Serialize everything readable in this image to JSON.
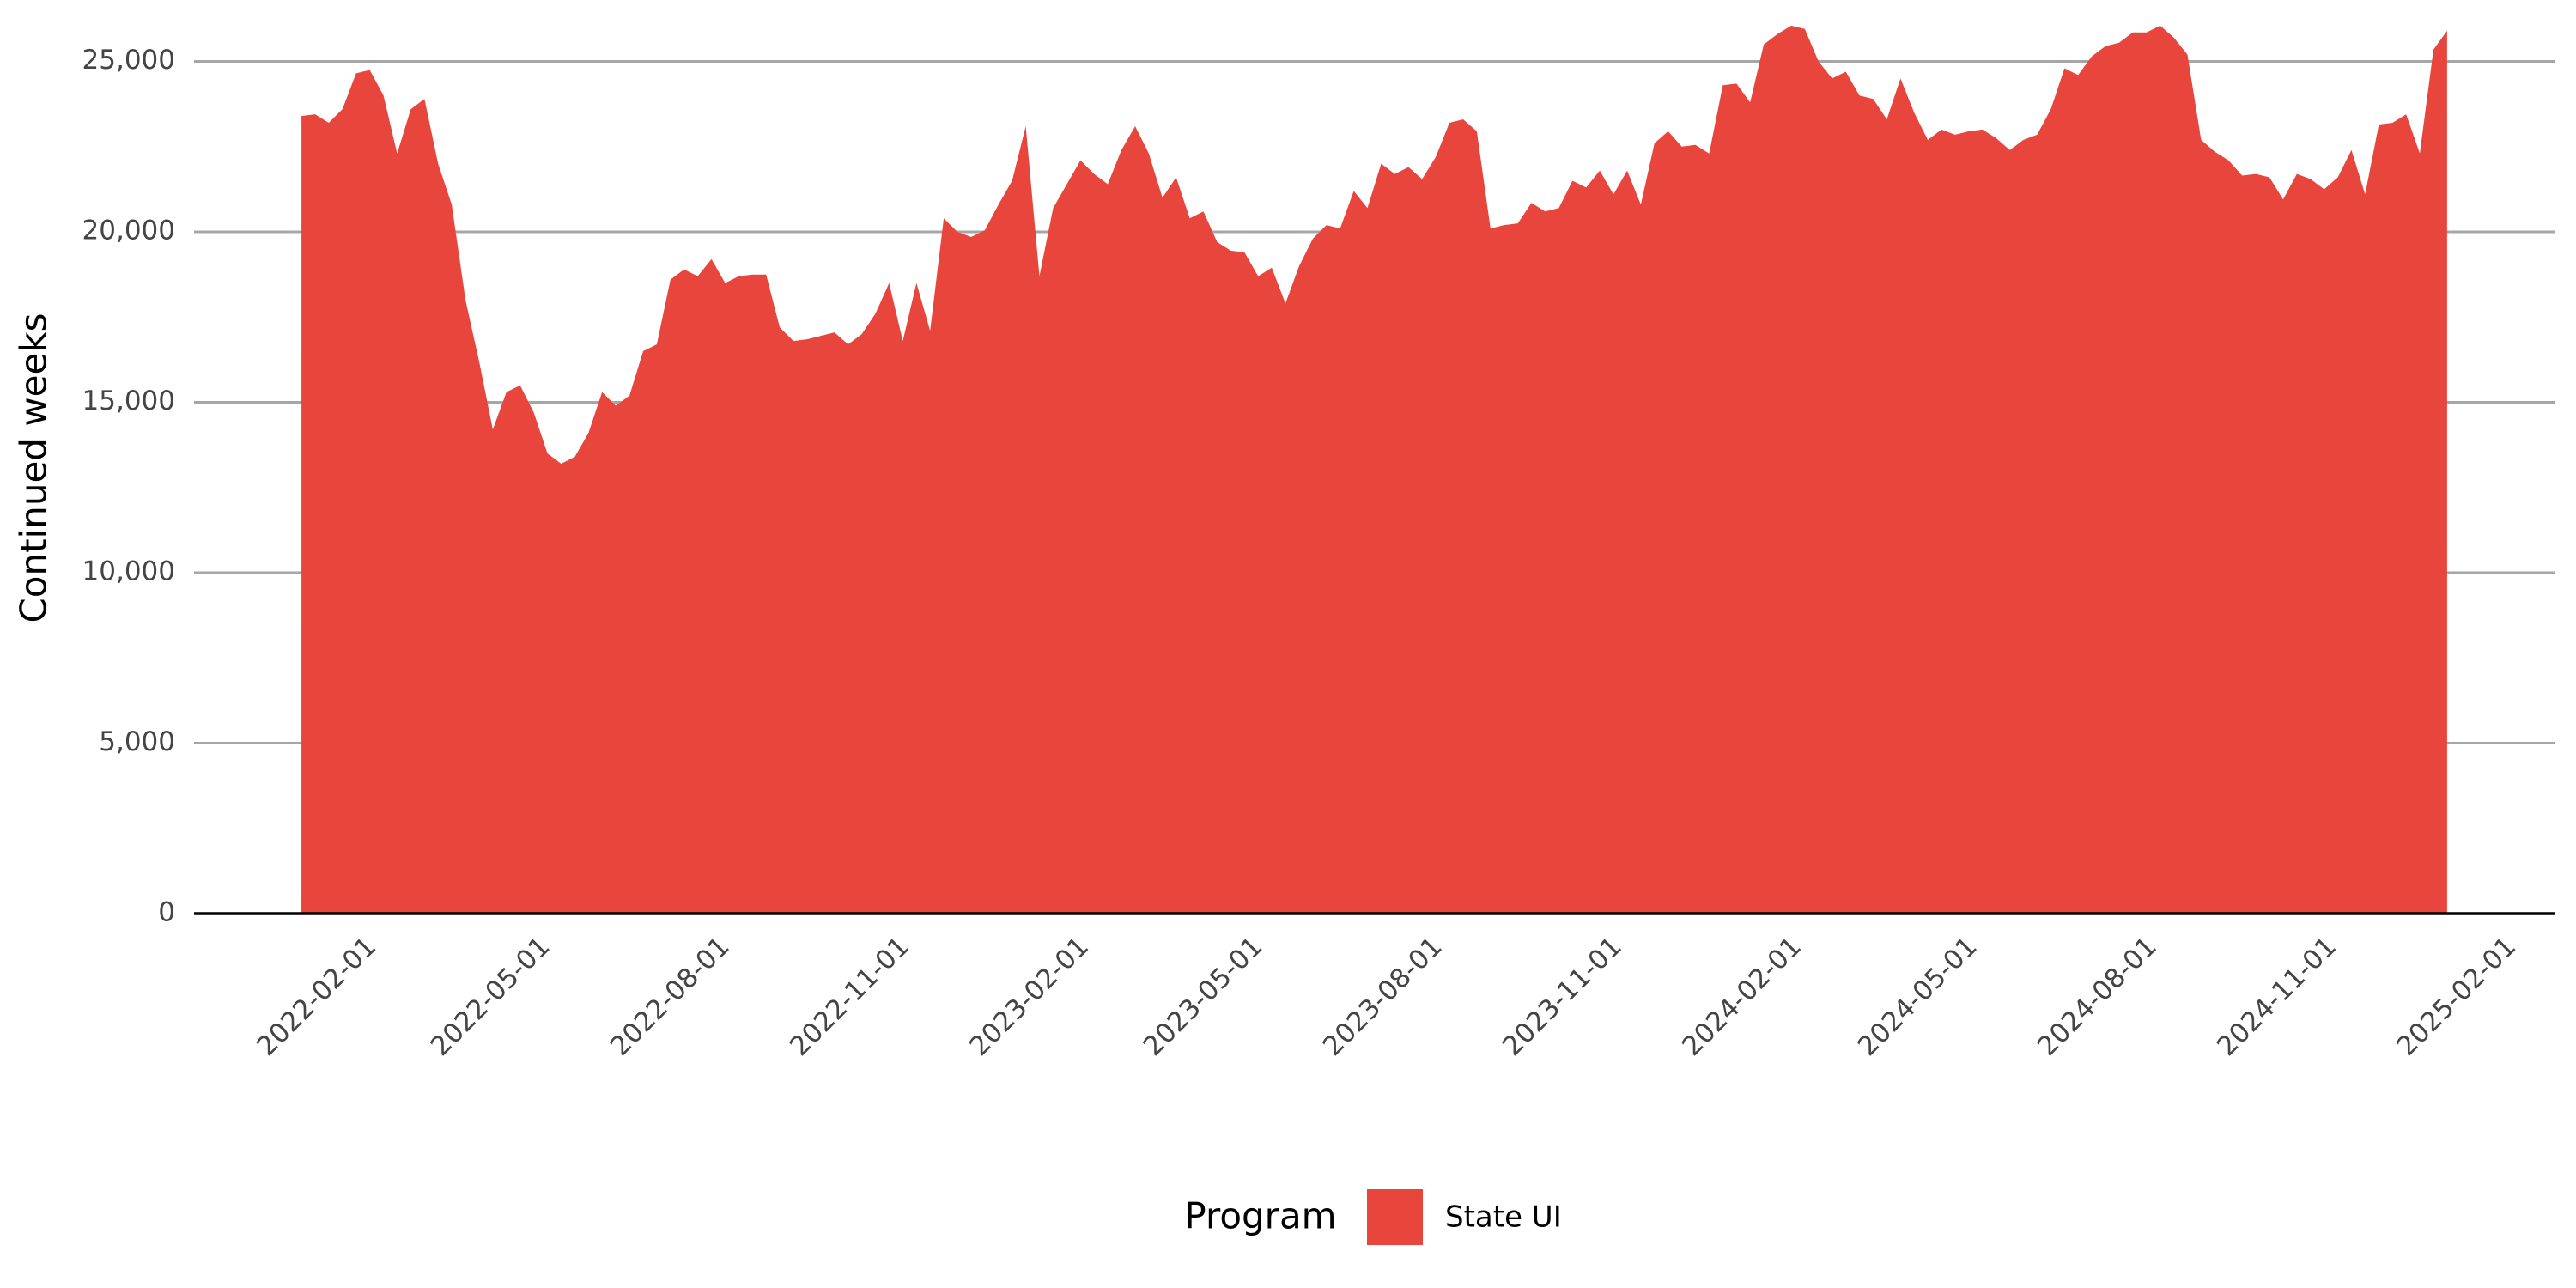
{
  "chart_data": {
    "type": "area",
    "y_label": "Continued weeks",
    "legend_title": "Program",
    "legend_position": "bottom",
    "grid": true,
    "xlim": [
      "2021-11-07",
      "2025-02-28"
    ],
    "ylim": [
      0,
      26500
    ],
    "xticks": [
      "2022-02-01",
      "2022-05-01",
      "2022-08-01",
      "2022-11-01",
      "2023-02-01",
      "2023-05-01",
      "2023-08-01",
      "2023-11-01",
      "2024-02-01",
      "2024-05-01",
      "2024-08-01",
      "2024-11-01",
      "2025-02-01"
    ],
    "yticks": [
      0,
      {
        "value": 5000,
        "label": "5,000"
      },
      {
        "value": 10000,
        "label": "10,000"
      },
      {
        "value": 15000,
        "label": "15,000"
      },
      {
        "value": 20000,
        "label": "20,000"
      },
      {
        "value": 25000,
        "label": "25,000"
      }
    ],
    "x": [
      "2022-01-01",
      "2022-01-08",
      "2022-01-15",
      "2022-01-22",
      "2022-01-29",
      "2022-02-05",
      "2022-02-12",
      "2022-02-19",
      "2022-02-26",
      "2022-03-05",
      "2022-03-12",
      "2022-03-19",
      "2022-03-26",
      "2022-04-02",
      "2022-04-09",
      "2022-04-16",
      "2022-04-23",
      "2022-04-30",
      "2022-05-07",
      "2022-05-14",
      "2022-05-21",
      "2022-05-28",
      "2022-06-04",
      "2022-06-11",
      "2022-06-18",
      "2022-06-25",
      "2022-07-02",
      "2022-07-09",
      "2022-07-16",
      "2022-07-23",
      "2022-07-30",
      "2022-08-06",
      "2022-08-13",
      "2022-08-20",
      "2022-08-27",
      "2022-09-03",
      "2022-09-10",
      "2022-09-17",
      "2022-09-24",
      "2022-10-01",
      "2022-10-08",
      "2022-10-15",
      "2022-10-22",
      "2022-10-29",
      "2022-11-05",
      "2022-11-12",
      "2022-11-19",
      "2022-11-26",
      "2022-12-03",
      "2022-12-10",
      "2022-12-17",
      "2022-12-24",
      "2022-12-31",
      "2023-01-07",
      "2023-01-14",
      "2023-01-21",
      "2023-01-28",
      "2023-02-04",
      "2023-02-11",
      "2023-02-18",
      "2023-02-25",
      "2023-03-04",
      "2023-03-11",
      "2023-03-18",
      "2023-03-25",
      "2023-04-01",
      "2023-04-08",
      "2023-04-15",
      "2023-04-22",
      "2023-04-29",
      "2023-05-06",
      "2023-05-13",
      "2023-05-20",
      "2023-05-27",
      "2023-06-03",
      "2023-06-10",
      "2023-06-17",
      "2023-06-24",
      "2023-07-01",
      "2023-07-08",
      "2023-07-15",
      "2023-07-22",
      "2023-07-29",
      "2023-08-05",
      "2023-08-12",
      "2023-08-19",
      "2023-08-26",
      "2023-09-02",
      "2023-09-09",
      "2023-09-16",
      "2023-09-23",
      "2023-09-30",
      "2023-10-07",
      "2023-10-14",
      "2023-10-21",
      "2023-10-28",
      "2023-11-04",
      "2023-11-11",
      "2023-11-18",
      "2023-11-25",
      "2023-12-02",
      "2023-12-09",
      "2023-12-16",
      "2023-12-23",
      "2023-12-30",
      "2024-01-06",
      "2024-01-13",
      "2024-01-20",
      "2024-01-27",
      "2024-02-03",
      "2024-02-10",
      "2024-02-17",
      "2024-02-24",
      "2024-03-02",
      "2024-03-09",
      "2024-03-16",
      "2024-03-23",
      "2024-03-30",
      "2024-04-06",
      "2024-04-13",
      "2024-04-20",
      "2024-04-27",
      "2024-05-04",
      "2024-05-11",
      "2024-05-18",
      "2024-05-25",
      "2024-06-01",
      "2024-06-08",
      "2024-06-15",
      "2024-06-22",
      "2024-06-29",
      "2024-07-06",
      "2024-07-13",
      "2024-07-20",
      "2024-07-27",
      "2024-08-03",
      "2024-08-10",
      "2024-08-17",
      "2024-08-24",
      "2024-08-31",
      "2024-09-07",
      "2024-09-14",
      "2024-09-21",
      "2024-09-28",
      "2024-10-05",
      "2024-10-12",
      "2024-10-19",
      "2024-10-26",
      "2024-11-02",
      "2024-11-09",
      "2024-11-16",
      "2024-11-23",
      "2024-11-30",
      "2024-12-07",
      "2024-12-14",
      "2024-12-21",
      "2024-12-28",
      "2025-01-04"
    ],
    "series": [
      {
        "name": "State UI",
        "color": "#e8453c",
        "values": [
          23400,
          23450,
          23200,
          23600,
          24650,
          24750,
          24000,
          22300,
          23600,
          23900,
          22000,
          20800,
          18000,
          16200,
          14200,
          15300,
          15500,
          14700,
          13500,
          13200,
          13400,
          14100,
          15300,
          14900,
          15200,
          16500,
          16700,
          18600,
          18900,
          18700,
          19200,
          18500,
          18700,
          18750,
          18750,
          17200,
          16800,
          16850,
          16950,
          17050,
          16700,
          17000,
          17600,
          18500,
          16800,
          18500,
          17100,
          20400,
          20000,
          19850,
          20050,
          20800,
          21500,
          23100,
          18700,
          20700,
          21400,
          22100,
          21700,
          21400,
          22400,
          23100,
          22300,
          21000,
          21600,
          20400,
          20600,
          19700,
          19450,
          19400,
          18700,
          18950,
          17900,
          19000,
          19800,
          20200,
          20100,
          21200,
          20700,
          22000,
          21700,
          21900,
          21550,
          22200,
          23200,
          23300,
          22950,
          20100,
          20200,
          20250,
          20850,
          20600,
          20700,
          21500,
          21300,
          21800,
          21100,
          21800,
          20800,
          22600,
          22950,
          22500,
          22550,
          22300,
          24300,
          24350,
          23800,
          25500,
          25800,
          26050,
          25950,
          25000,
          24500,
          24700,
          24000,
          23900,
          23300,
          24500,
          23500,
          22700,
          23000,
          22850,
          22950,
          23000,
          22750,
          22400,
          22700,
          22850,
          23600,
          24800,
          24600,
          25150,
          25450,
          25550,
          25850,
          25850,
          26050,
          25700,
          25200,
          22700,
          22350,
          22100,
          21650,
          21700,
          21600,
          20950,
          21700,
          21550,
          21250,
          21600,
          22400,
          21100,
          23150,
          23200,
          23450,
          22300,
          25350,
          25900
        ]
      }
    ]
  }
}
